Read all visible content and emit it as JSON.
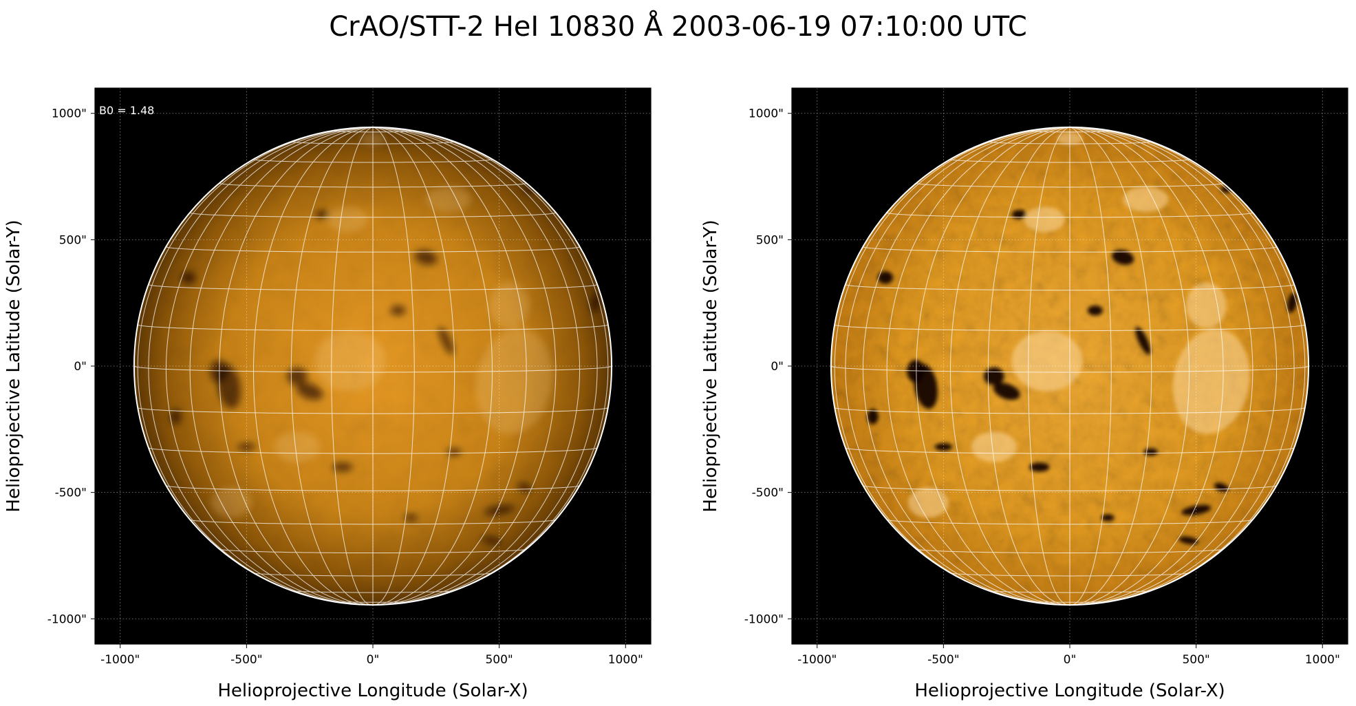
{
  "figure": {
    "title": "CrAO/STT-2 HeI 10830 Å 2003-06-19 07:10:00 UTC"
  },
  "panels": [
    {
      "id": "left",
      "annotation": "B0 = 1.48",
      "xlabel": "Helioprojective Longitude (Solar-X)",
      "ylabel": "Helioprojective Latitude (Solar-Y)",
      "x_ticks": [
        "-1000\"",
        "-500\"",
        "0\"",
        "500\"",
        "1000\""
      ],
      "y_ticks": [
        "1000\"",
        "500\"",
        "0\"",
        "-500\"",
        "-1000\""
      ],
      "style": "smooth"
    },
    {
      "id": "right",
      "annotation": "",
      "xlabel": "Helioprojective Longitude (Solar-X)",
      "ylabel": "Helioprojective Latitude (Solar-Y)",
      "x_ticks": [
        "-1000\"",
        "-500\"",
        "0\"",
        "500\"",
        "1000\""
      ],
      "y_ticks": [
        "1000\"",
        "500\"",
        "0\"",
        "-500\"",
        "-1000\""
      ],
      "style": "contrast"
    }
  ],
  "axes": {
    "x_range": [
      -1100,
      1100
    ],
    "y_range": [
      -1100,
      1100
    ],
    "tick_values": [
      -1000,
      -500,
      0,
      500,
      1000
    ],
    "solar_radius_arcsec": 945,
    "b0_deg": 1.48,
    "grid_spacing_deg": 10,
    "axis_grid": "dotted"
  },
  "colors": {
    "background": "#000000",
    "disk_center": "#e89a24",
    "disk_limb": "#5e3704",
    "grid_lines": "#ffffff",
    "limb_outline": "#ffffff",
    "feature_dark": "#0d0500",
    "feature_bright": "#fbd79a"
  }
}
